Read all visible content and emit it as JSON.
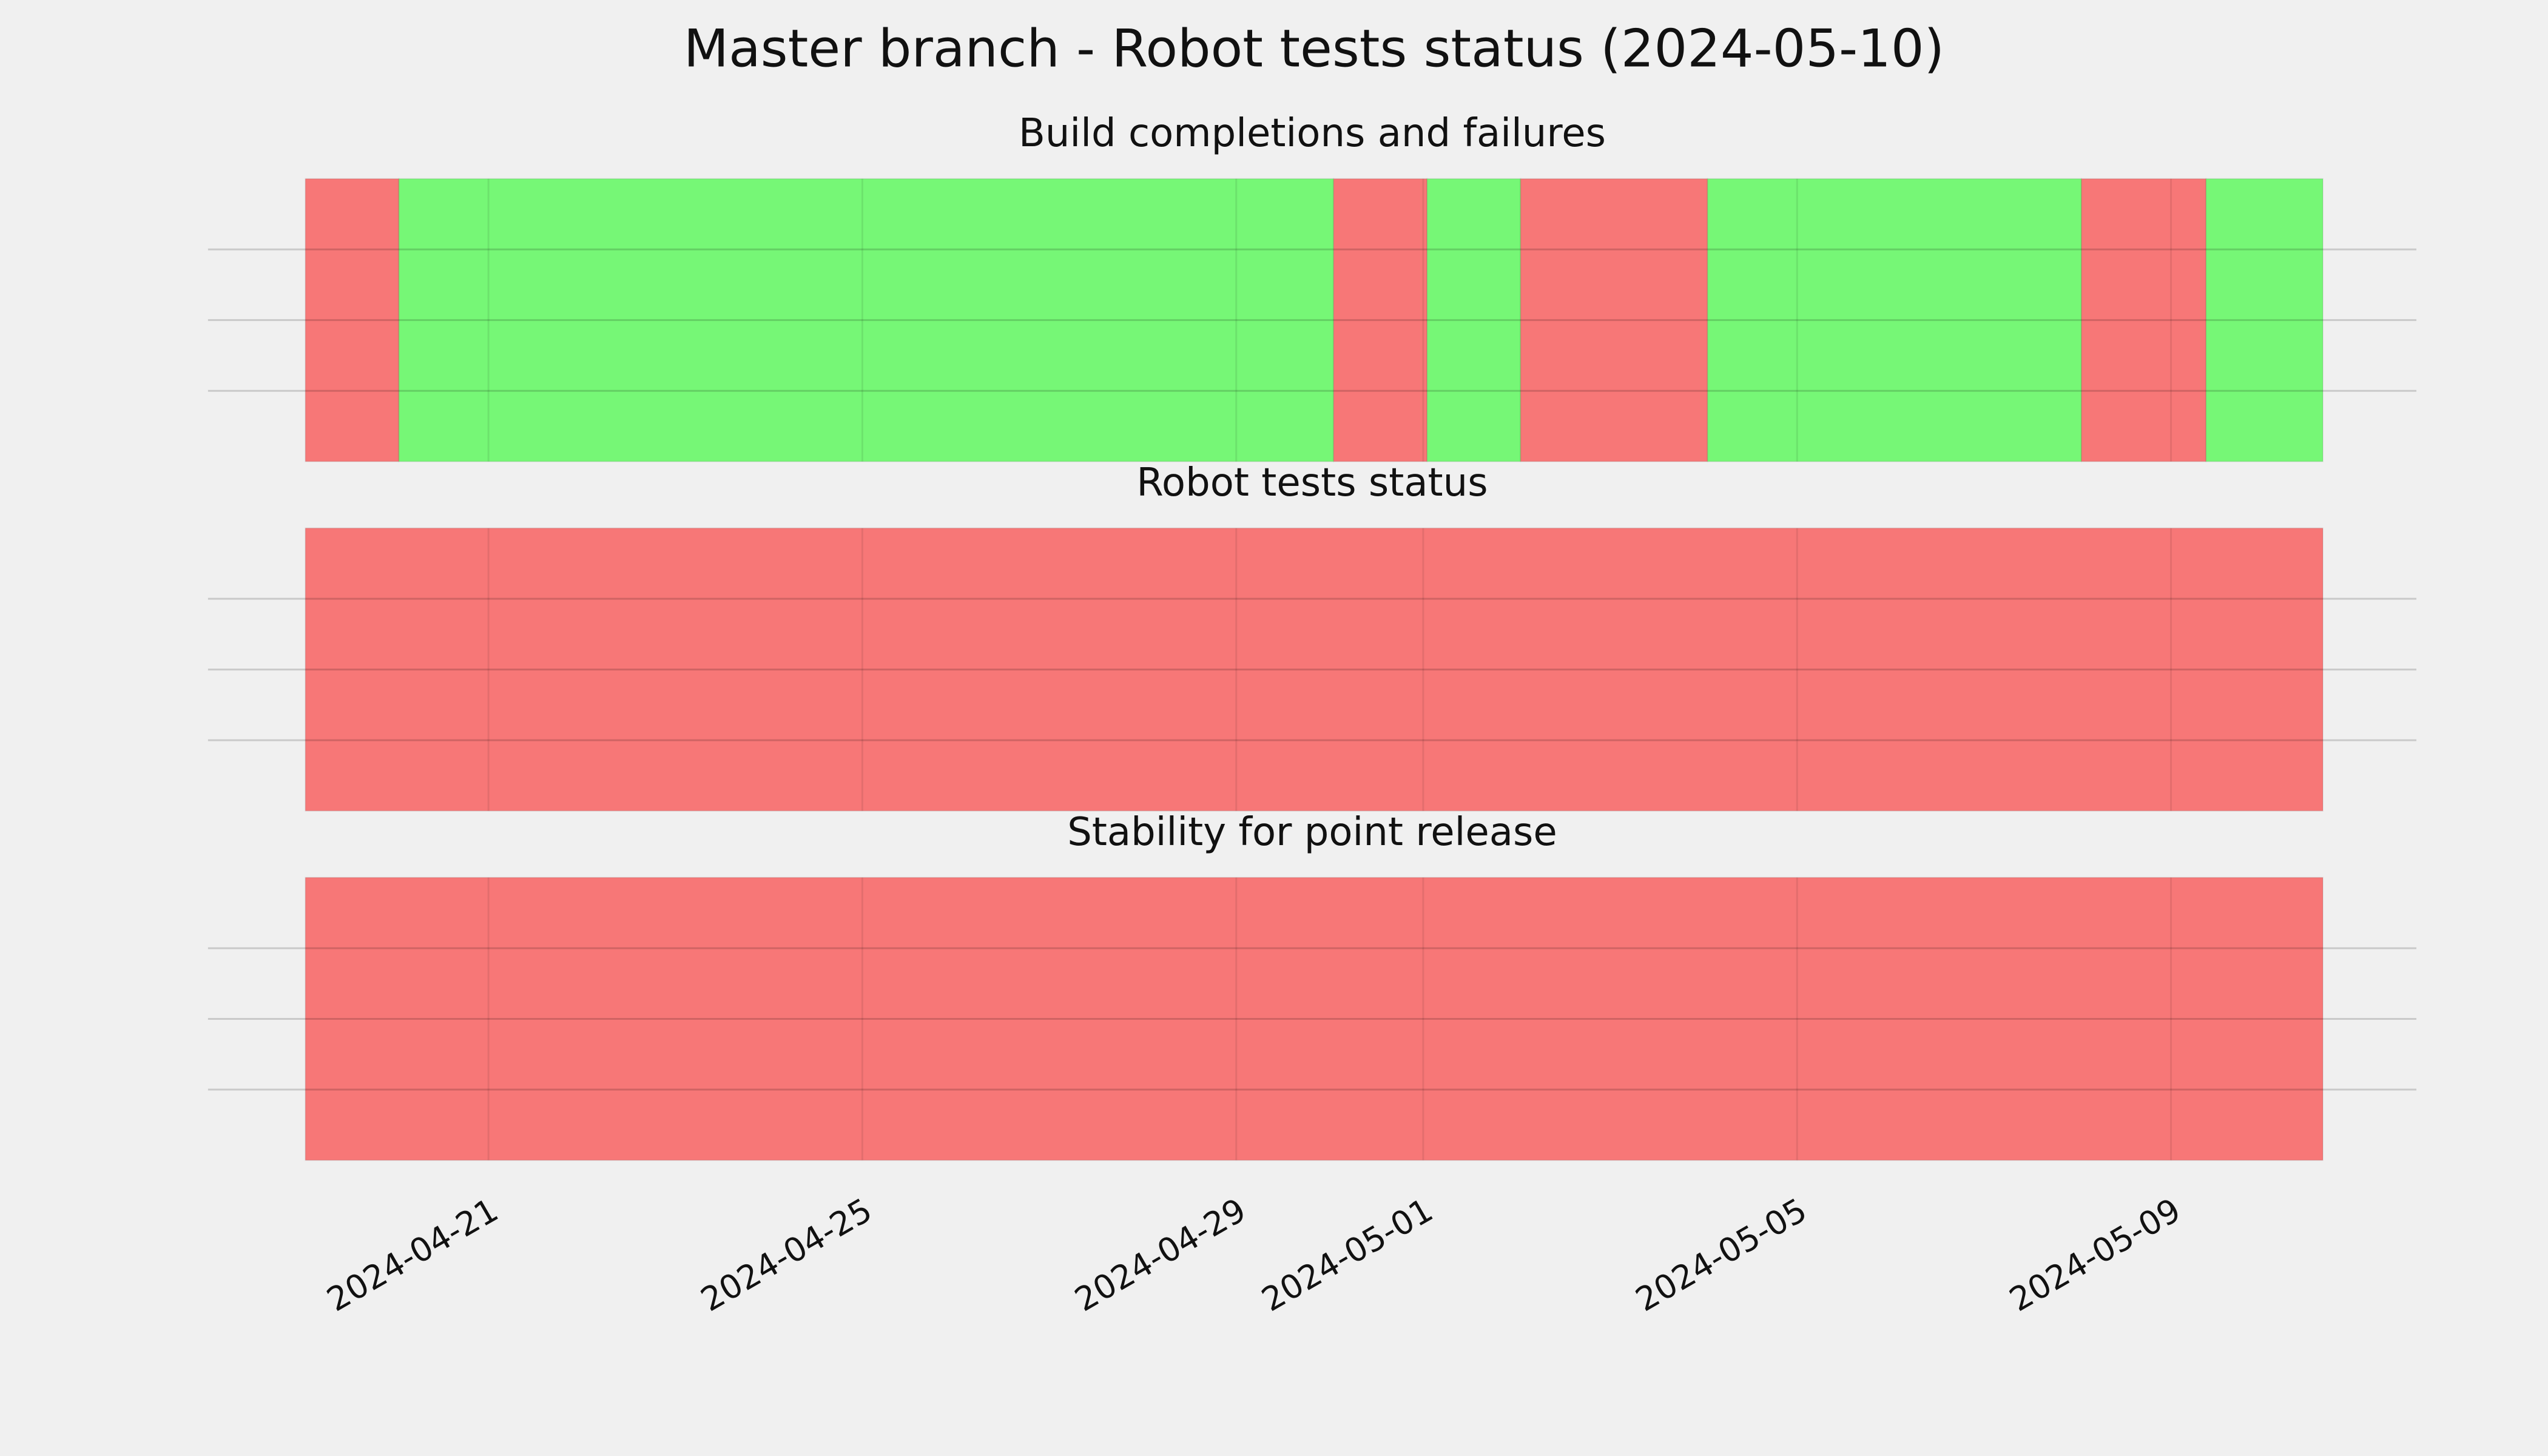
{
  "title": "Master branch - Robot tests status (2024-05-10)",
  "chart_data": [
    {
      "type": "timeline",
      "title": "Build completions and failures",
      "segments": [
        {
          "start": "2024-04-19T01:00",
          "end": "2024-04-20T01:00",
          "color": "#f77777"
        },
        {
          "start": "2024-04-20T01:00",
          "end": "2024-04-30T01:00",
          "color": "#76f776"
        },
        {
          "start": "2024-04-30T01:00",
          "end": "2024-05-01T01:00",
          "color": "#f77777"
        },
        {
          "start": "2024-05-01T01:00",
          "end": "2024-05-02T01:00",
          "color": "#76f776"
        },
        {
          "start": "2024-05-02T01:00",
          "end": "2024-05-04T01:00",
          "color": "#f77777"
        },
        {
          "start": "2024-05-04T01:00",
          "end": "2024-05-08T01:00",
          "color": "#76f776"
        },
        {
          "start": "2024-05-08T01:00",
          "end": "2024-05-09T09:00",
          "color": "#f77777"
        },
        {
          "start": "2024-05-09T09:00",
          "end": "2024-05-10T15:00",
          "color": "#76f776"
        }
      ],
      "xlim": [
        "2024-04-18T00:00",
        "2024-05-11T15:00"
      ],
      "xticks": [
        "2024-04-21",
        "2024-04-25",
        "2024-04-29",
        "2024-05-01",
        "2024-05-05",
        "2024-05-09"
      ],
      "ylim": [
        0,
        1
      ],
      "yticks": [
        0.25,
        0.5,
        0.75
      ],
      "grid": true
    },
    {
      "type": "timeline",
      "title": "Robot tests status",
      "segments": [
        {
          "start": "2024-04-19T01:00",
          "end": "2024-05-10T15:00",
          "color": "#f77777"
        }
      ],
      "xlim": [
        "2024-04-18T00:00",
        "2024-05-11T15:00"
      ],
      "xticks": [
        "2024-04-21",
        "2024-04-25",
        "2024-04-29",
        "2024-05-01",
        "2024-05-05",
        "2024-05-09"
      ],
      "ylim": [
        0,
        1
      ],
      "yticks": [
        0.25,
        0.5,
        0.75
      ],
      "grid": true
    },
    {
      "type": "timeline",
      "title": "Stability for point release",
      "segments": [
        {
          "start": "2024-04-19T01:00",
          "end": "2024-05-10T15:00",
          "color": "#f77777"
        }
      ],
      "xlim": [
        "2024-04-18T00:00",
        "2024-05-11T15:00"
      ],
      "xticks": [
        "2024-04-21",
        "2024-04-25",
        "2024-04-29",
        "2024-05-01",
        "2024-05-05",
        "2024-05-09"
      ],
      "ylim": [
        0,
        1
      ],
      "yticks": [
        0.25,
        0.5,
        0.75
      ],
      "grid": true
    }
  ]
}
